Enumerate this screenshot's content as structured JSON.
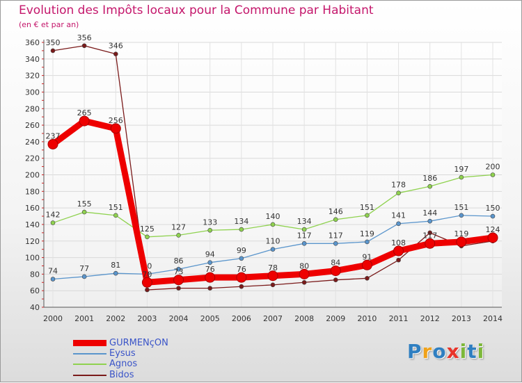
{
  "chart_data": {
    "type": "line",
    "title": "Evolution des Impôts locaux pour la Commune par Habitant",
    "subtitle": "(en € et par an)",
    "ylim": [
      40,
      360
    ],
    "y_ticks": [
      40,
      60,
      80,
      100,
      120,
      140,
      160,
      180,
      200,
      220,
      240,
      260,
      280,
      300,
      320,
      340,
      360
    ],
    "categories": [
      "2000",
      "2001",
      "2002",
      "2003",
      "2004",
      "2005",
      "2006",
      "2007",
      "2008",
      "2009",
      "2010",
      "2011",
      "2012",
      "2013",
      "2014"
    ],
    "grid": true,
    "series": [
      {
        "name": "Bidos",
        "color": "#7a1a1a",
        "values": [
          350,
          356,
          346,
          61,
          63,
          63,
          65,
          67,
          70,
          73,
          75,
          97,
          130,
          114,
          120
        ],
        "labels": [
          "350",
          "356",
          "346",
          "61",
          "63",
          "63",
          "65",
          "67",
          "70",
          "73",
          "75",
          "97",
          "130",
          "114",
          "120"
        ],
        "labeled": [
          true,
          true,
          true,
          false,
          false,
          false,
          false,
          false,
          false,
          false,
          false,
          false,
          false,
          false,
          false
        ]
      },
      {
        "name": "Agnos",
        "color": "#8fd24f",
        "values": [
          142,
          155,
          151,
          125,
          127,
          133,
          134,
          140,
          134,
          146,
          151,
          178,
          186,
          197,
          200
        ],
        "labels": [
          "142",
          "155",
          "151",
          "125",
          "127",
          "133",
          "134",
          "140",
          "134",
          "146",
          "151",
          "178",
          "186",
          "197",
          "200"
        ],
        "labeled": [
          true,
          true,
          true,
          true,
          true,
          true,
          true,
          true,
          true,
          true,
          true,
          true,
          true,
          true,
          true
        ]
      },
      {
        "name": "Eysus",
        "color": "#5a95cc",
        "values": [
          74,
          77,
          81,
          80,
          86,
          94,
          99,
          110,
          117,
          117,
          119,
          141,
          144,
          151,
          150
        ],
        "labels": [
          "74",
          "77",
          "81",
          "80",
          "86",
          "94",
          "99",
          "110",
          "117",
          "117",
          "119",
          "141",
          "144",
          "151",
          "150"
        ],
        "labeled": [
          true,
          true,
          true,
          true,
          true,
          true,
          true,
          true,
          true,
          true,
          true,
          true,
          true,
          true,
          true
        ]
      },
      {
        "name": "GURMENçON",
        "color": "#ee0000",
        "values": [
          237,
          265,
          256,
          70,
          73,
          76,
          76,
          78,
          80,
          84,
          91,
          108,
          117,
          119,
          124
        ],
        "labels": [
          "237",
          "265",
          "256",
          "70",
          "73",
          "76",
          "76",
          "78",
          "80",
          "84",
          "91",
          "108",
          "117",
          "119",
          "124"
        ],
        "labeled": [
          true,
          true,
          true,
          true,
          true,
          true,
          true,
          true,
          true,
          true,
          true,
          true,
          true,
          true,
          true
        ]
      }
    ]
  },
  "legend": {
    "items": [
      {
        "name": "GURMENçON",
        "color": "#ee0000"
      },
      {
        "name": "Eysus",
        "color": "#5a95cc"
      },
      {
        "name": "Agnos",
        "color": "#8fd24f"
      },
      {
        "name": "Bidos",
        "color": "#7a1a1a"
      }
    ]
  },
  "logo": {
    "letters": [
      "P",
      "r",
      "o",
      "x",
      "i",
      "t",
      "i"
    ],
    "colors": [
      "#2f7fc1",
      "#f0a21a",
      "#2f7fc1",
      "#e8342a",
      "#7db83a",
      "#2f7fc1",
      "#7db83a"
    ]
  }
}
